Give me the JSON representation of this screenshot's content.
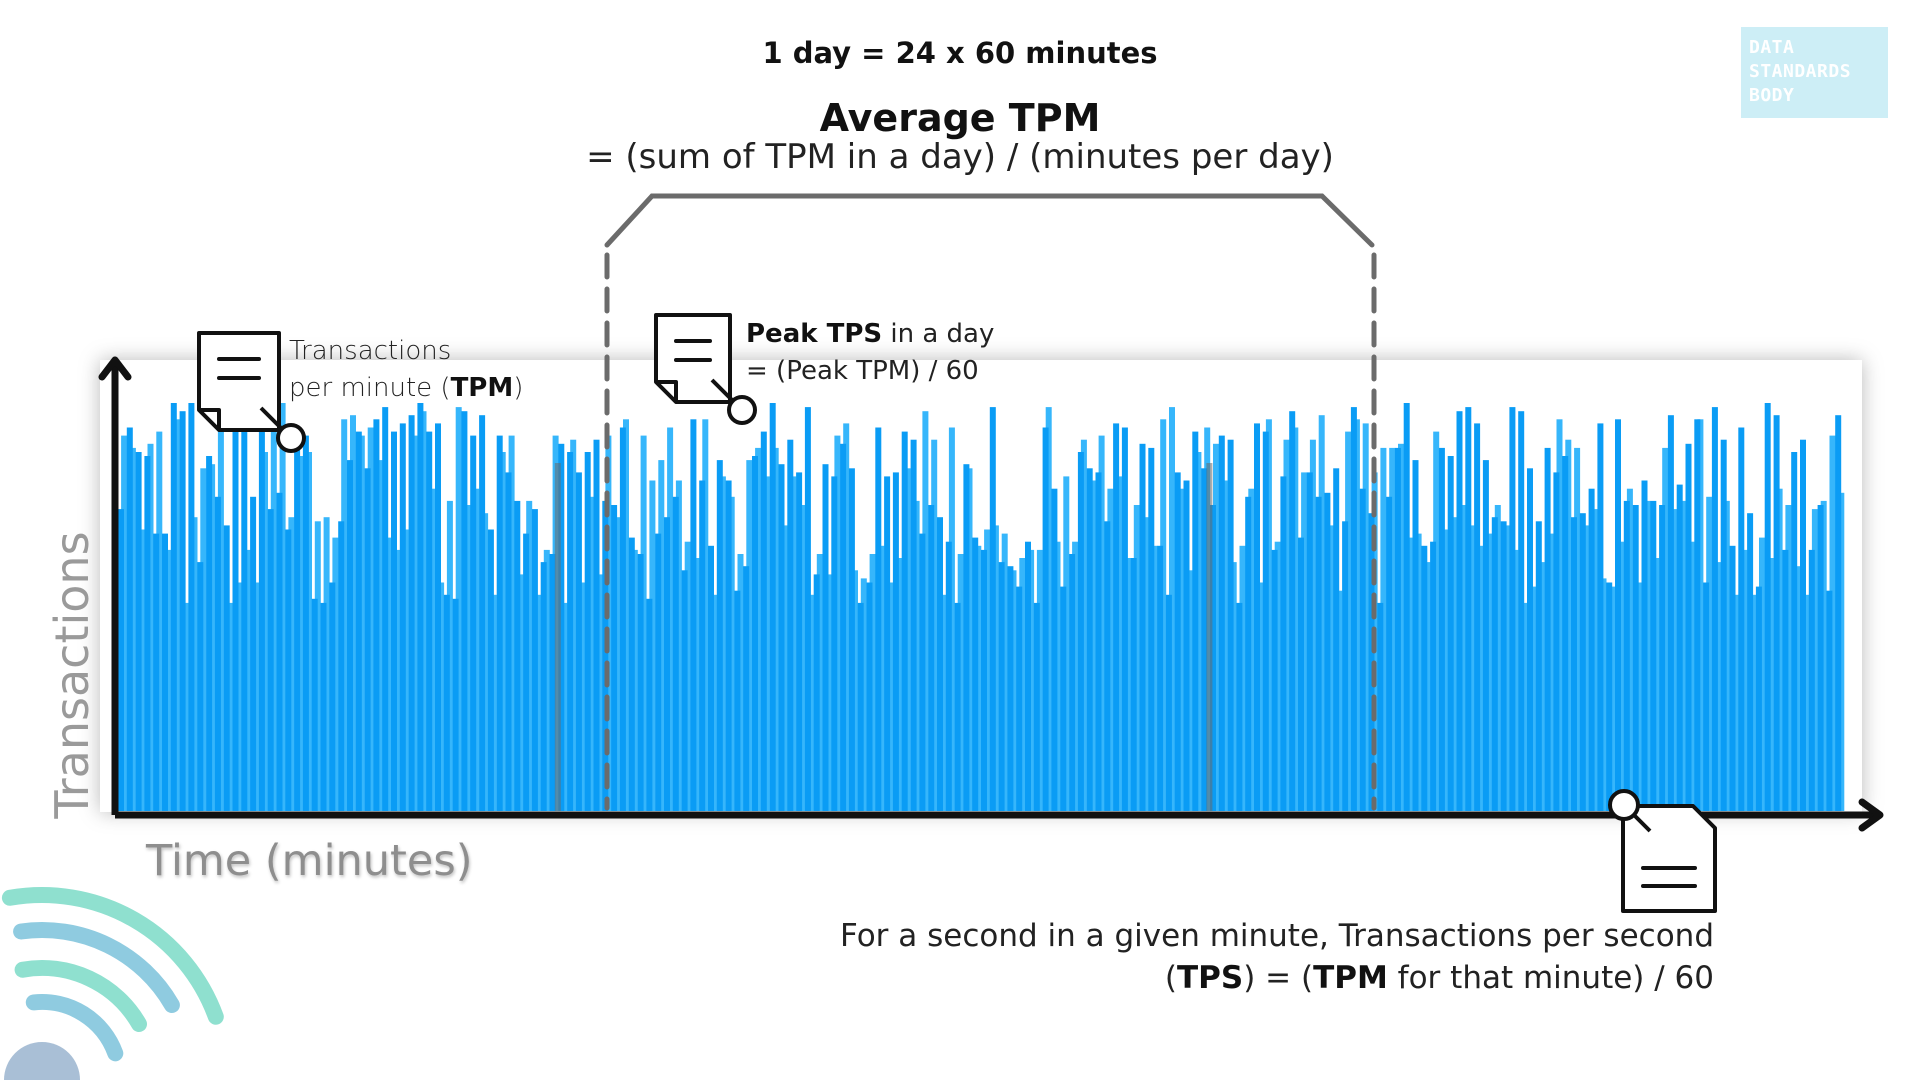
{
  "header": {
    "day_definition": "1 day = 24 x 60 minutes",
    "average_title": "Average TPM",
    "average_formula": "= (sum of TPM in a day) / (minutes per day)"
  },
  "brand": {
    "lines": [
      "DATA",
      "STANDARDS",
      "BODY"
    ]
  },
  "axes": {
    "y_label": "Transactions",
    "x_label": "Time (minutes)"
  },
  "tpm_callout": {
    "line1": "Transactions",
    "line2_prefix": "per minute (",
    "line2_bold": "TPM",
    "line2_suffix": ")"
  },
  "peak_callout": {
    "bold": "Peak TPS",
    "line1_rest": " in a day",
    "line2": "= (Peak TPM) / 60"
  },
  "tps_callout": {
    "line1": "For a second in a given minute, Transactions per second",
    "open_paren": "(",
    "tps_bold": "TPS",
    "middle": ") = (",
    "tpm_bold": "TPM",
    "line2_rest": " for that minute) / 60"
  },
  "icons": [
    "document-icon",
    "document-search-icon",
    "decorative-circles"
  ],
  "colors": {
    "bar_dark": "#0a9cf5",
    "bar_light": "#36b6fb",
    "axis": "#111111",
    "bracket": "#6b6b6b",
    "guide_line": "#c8c8c8",
    "brand_bg": "#cdeef6",
    "deco_teal": "#8fe0cf",
    "deco_blue": "#8fcbe0"
  },
  "chart_data": {
    "type": "bar",
    "bar_count": 196,
    "y_scale": "relative (0 = baseline, 1 = peak guide line)",
    "values": [
      0.74,
      0.94,
      0.88,
      0.87,
      0.68,
      0.68,
      1.0,
      0.98,
      1.0,
      0.61,
      0.87,
      0.77,
      0.7,
      1.0,
      0.99,
      0.77,
      0.99,
      0.74,
      0.78,
      0.69,
      0.89,
      0.92,
      0.52,
      0.51,
      0.56,
      0.71,
      0.86,
      0.93,
      0.84,
      0.96,
      0.99,
      0.93,
      0.95,
      0.97,
      1.0,
      0.93,
      0.95,
      0.53,
      0.52,
      0.98,
      0.92,
      0.97,
      0.69,
      0.92,
      0.83,
      0.76,
      0.68,
      0.74,
      0.61,
      0.63,
      0.9,
      0.88,
      0.83,
      0.88,
      0.91,
      0.76,
      0.75,
      0.94,
      0.67,
      0.63,
      0.52,
      0.68,
      0.72,
      0.77,
      0.59,
      0.96,
      0.81,
      0.65,
      0.86,
      0.81,
      0.54,
      0.6,
      0.87,
      0.93,
      1.0,
      0.85,
      0.91,
      0.83,
      0.99,
      0.58,
      0.85,
      0.82,
      0.9,
      0.84,
      0.51,
      0.56,
      0.94,
      0.82,
      0.83,
      0.93,
      0.91,
      0.68,
      0.75,
      0.72,
      0.66,
      0.51,
      0.85,
      0.67,
      0.64,
      0.99,
      0.61,
      0.6,
      0.55,
      0.66,
      0.51,
      0.94,
      0.79,
      0.55,
      0.63,
      0.88,
      0.84,
      0.83,
      0.71,
      0.95,
      0.94,
      0.62,
      0.9,
      0.89,
      0.65,
      0.53,
      0.83,
      0.81,
      0.93,
      0.84,
      0.75,
      0.92,
      0.91,
      0.51,
      0.77,
      0.95,
      0.93,
      0.64,
      0.82,
      0.98,
      0.67,
      0.83,
      0.77,
      0.78,
      0.84,
      0.71,
      0.99,
      0.79,
      0.73,
      0.51,
      0.77,
      0.89,
      1.0,
      0.86,
      0.65,
      0.66,
      0.89,
      0.87,
      0.98,
      0.99,
      0.95,
      0.86,
      0.72,
      0.71,
      0.99,
      0.98,
      0.84,
      0.71,
      0.89,
      0.83,
      0.87,
      0.72,
      0.73,
      0.79,
      0.95,
      0.56,
      0.96,
      0.76,
      0.75,
      0.81,
      0.76,
      0.75,
      0.97,
      0.8,
      0.9,
      0.96,
      0.56,
      0.99,
      0.91,
      0.65,
      0.94,
      0.73,
      0.55,
      1.0,
      0.97,
      0.64,
      0.88,
      0.91,
      0.64,
      0.75,
      0.54,
      0.97,
      0.58,
      0.59
    ],
    "secondary_values": [
      0.92,
      0.89,
      0.69,
      0.9,
      0.93,
      0.64,
      0.96,
      0.51,
      0.72,
      0.84,
      0.85,
      0.93,
      0.51,
      0.56,
      0.64,
      0.56,
      0.88,
      0.94,
      1.0,
      0.72,
      0.87,
      0.88,
      0.71,
      0.72,
      0.67,
      0.96,
      0.97,
      0.92,
      0.94,
      0.86,
      0.67,
      0.64,
      0.69,
      0.92,
      0.98,
      0.79,
      0.56,
      0.76,
      0.99,
      0.75,
      0.79,
      0.73,
      0.53,
      0.88,
      0.92,
      0.58,
      0.76,
      0.53,
      0.64,
      0.92,
      0.51,
      0.91,
      0.56,
      0.77,
      0.58,
      0.92,
      0.72,
      0.96,
      0.64,
      0.92,
      0.81,
      0.86,
      0.94,
      0.81,
      0.66,
      0.62,
      0.96,
      0.53,
      0.82,
      0.77,
      0.63,
      0.86,
      0.89,
      0.82,
      0.89,
      0.7,
      0.82,
      0.75,
      0.53,
      0.63,
      0.58,
      0.92,
      0.95,
      0.59,
      0.57,
      0.63,
      0.65,
      0.56,
      0.62,
      0.84,
      0.76,
      0.98,
      0.91,
      0.53,
      0.94,
      0.63,
      0.84,
      0.65,
      0.69,
      0.7,
      0.68,
      0.59,
      0.62,
      0.64,
      0.64,
      0.99,
      0.66,
      0.82,
      0.66,
      0.91,
      0.81,
      0.92,
      0.79,
      0.82,
      0.62,
      0.75,
      0.72,
      0.65,
      0.96,
      0.99,
      0.79,
      0.59,
      0.88,
      0.94,
      0.9,
      0.81,
      0.61,
      0.65,
      0.79,
      0.56,
      0.96,
      0.66,
      0.91,
      0.94,
      0.83,
      0.91,
      0.97,
      0.7,
      0.54,
      0.93,
      0.96,
      0.95,
      0.83,
      0.89,
      0.89,
      0.9,
      0.67,
      0.68,
      0.61,
      0.93,
      0.69,
      0.72,
      0.75,
      0.7,
      0.65,
      0.68,
      0.75,
      0.7,
      0.64,
      0.51,
      0.55,
      0.61,
      0.68,
      0.96,
      0.91,
      0.89,
      0.7,
      0.74,
      0.57,
      0.55,
      0.66,
      0.79,
      0.56,
      0.76,
      0.62,
      0.89,
      0.74,
      0.76,
      0.66,
      0.96,
      0.77,
      0.61,
      0.76,
      0.53,
      0.64,
      0.53,
      0.67,
      0.62,
      0.79,
      0.75,
      0.6,
      0.53,
      0.74,
      0.76,
      0.92,
      0.78
    ],
    "gaps_at": [
      49,
      123
    ]
  }
}
